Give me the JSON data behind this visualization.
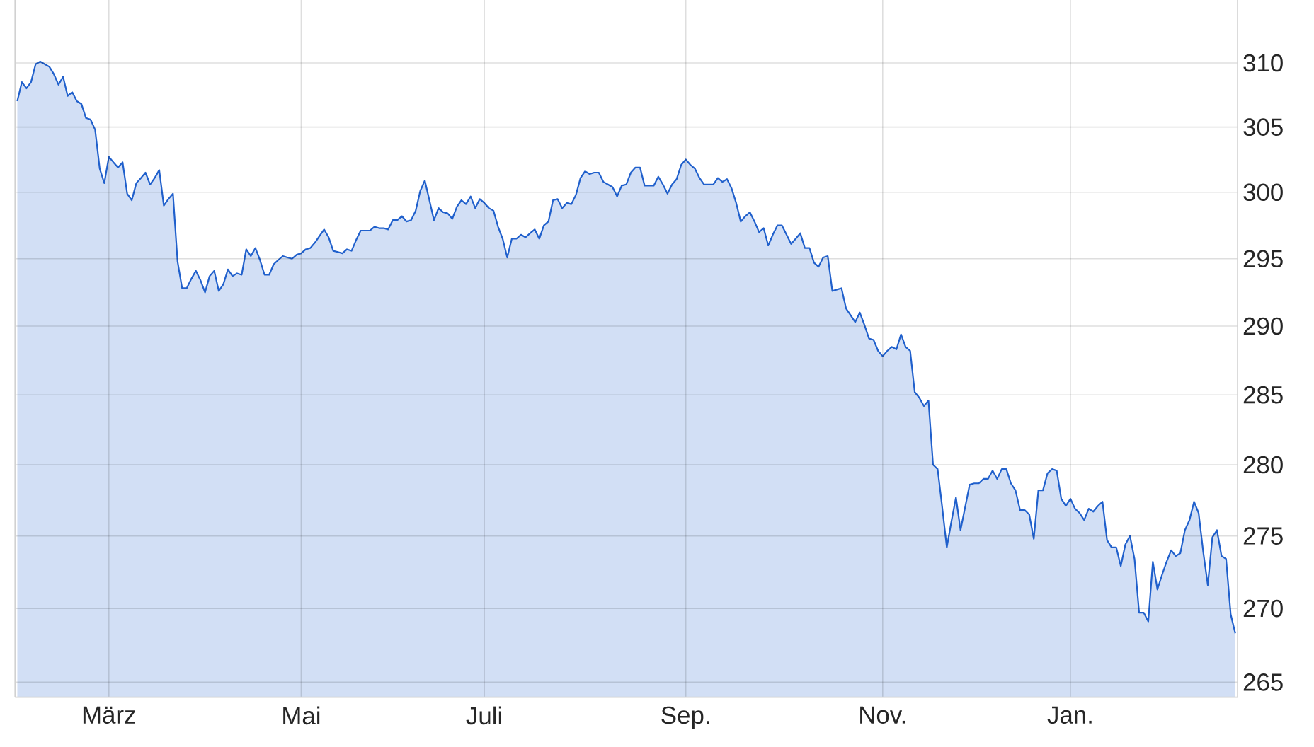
{
  "chart_data": {
    "type": "area",
    "color": "#2060cc",
    "log": "y",
    "grid": true,
    "ylim": [
      264,
      315
    ],
    "yticks": [
      265,
      270,
      275,
      280,
      285,
      290,
      295,
      300,
      305,
      310
    ],
    "categories": [
      null,
      null,
      null,
      null,
      null,
      null,
      null,
      null,
      null,
      null,
      null,
      null,
      null,
      null,
      null,
      null,
      null,
      null,
      null,
      null,
      "März",
      null,
      null,
      null,
      null,
      null,
      null,
      null,
      null,
      null,
      null,
      null,
      null,
      null,
      null,
      null,
      null,
      null,
      null,
      null,
      null,
      null,
      null,
      null,
      null,
      null,
      null,
      null,
      null,
      null,
      null,
      null,
      null,
      null,
      null,
      null,
      null,
      null,
      null,
      null,
      null,
      null,
      "Mai",
      null,
      null,
      null,
      null,
      null,
      null,
      null,
      null,
      null,
      null,
      null,
      null,
      null,
      null,
      null,
      null,
      null,
      null,
      null,
      null,
      null,
      null,
      null,
      null,
      null,
      null,
      null,
      null,
      null,
      null,
      null,
      null,
      null,
      null,
      null,
      null,
      null,
      null,
      null,
      "Juli",
      null,
      null,
      null,
      null,
      null,
      null,
      null,
      null,
      null,
      null,
      null,
      null,
      null,
      null,
      null,
      null,
      null,
      null,
      null,
      null,
      null,
      null,
      null,
      null,
      null,
      null,
      null,
      null,
      null,
      null,
      null,
      null,
      null,
      null,
      null,
      null,
      null,
      null,
      null,
      null,
      null,
      null,
      null,
      "Sep.",
      null,
      null,
      null,
      null,
      null,
      null,
      null,
      null,
      null,
      null,
      null,
      null,
      null,
      null,
      null,
      null,
      null,
      null,
      null,
      null,
      null,
      null,
      null,
      null,
      null,
      null,
      null,
      null,
      null,
      null,
      null,
      null,
      null,
      null,
      null,
      null,
      null,
      null,
      null,
      null,
      null,
      null,
      "Nov.",
      null,
      null,
      null,
      null,
      null,
      null,
      null,
      null,
      null,
      null,
      null,
      null,
      null,
      null,
      null,
      null,
      null,
      null,
      null,
      null,
      null,
      null,
      null,
      null,
      null,
      null,
      null,
      null,
      null,
      null,
      null,
      null,
      null,
      null,
      null,
      null,
      null,
      null,
      null,
      null,
      "Jan.",
      null,
      null,
      null,
      null,
      null,
      null,
      null,
      null,
      null,
      null,
      null,
      null,
      null,
      null,
      null,
      null,
      null,
      null,
      null,
      null,
      null,
      null,
      null,
      null,
      null,
      null,
      null,
      null,
      null,
      null,
      null,
      null,
      null,
      null,
      null,
      null
    ],
    "values": [
      307.0,
      308.5,
      308.0,
      308.5,
      309.9,
      310.1,
      309.9,
      309.7,
      309.1,
      308.3,
      308.9,
      307.4,
      307.7,
      307.0,
      306.8,
      305.7,
      305.6,
      304.8,
      301.8,
      300.7,
      302.7,
      302.3,
      301.9,
      302.3,
      299.9,
      299.4,
      300.7,
      301.1,
      301.5,
      300.6,
      301.1,
      301.7,
      299.0,
      299.5,
      299.9,
      294.8,
      292.8,
      292.8,
      293.5,
      294.1,
      293.4,
      292.5,
      293.7,
      294.1,
      292.6,
      293.1,
      294.2,
      293.7,
      293.9,
      293.8,
      295.7,
      295.2,
      295.8,
      294.9,
      293.8,
      293.8,
      294.6,
      294.9,
      295.2,
      295.1,
      295.0,
      295.3,
      295.4,
      295.7,
      295.8,
      296.2,
      296.7,
      297.2,
      296.6,
      295.6,
      295.5,
      295.4,
      295.7,
      295.6,
      296.4,
      297.1,
      297.1,
      297.1,
      297.4,
      297.3,
      297.3,
      297.2,
      297.9,
      297.9,
      298.2,
      297.8,
      297.9,
      298.6,
      300.1,
      300.9,
      299.4,
      297.9,
      298.8,
      298.5,
      298.4,
      298.0,
      298.9,
      299.4,
      299.1,
      299.7,
      298.8,
      299.5,
      299.2,
      298.8,
      298.6,
      297.4,
      296.5,
      295.1,
      296.5,
      296.5,
      296.8,
      296.6,
      296.9,
      297.2,
      296.5,
      297.5,
      297.8,
      299.4,
      299.5,
      298.8,
      299.2,
      299.1,
      299.8,
      301.1,
      301.6,
      301.4,
      301.5,
      301.5,
      300.8,
      300.6,
      300.4,
      299.7,
      300.5,
      300.6,
      301.5,
      301.9,
      301.9,
      300.5,
      300.5,
      300.5,
      301.2,
      300.6,
      299.9,
      300.6,
      301.0,
      302.1,
      302.5,
      302.1,
      301.8,
      301.1,
      300.6,
      300.6,
      300.6,
      301.1,
      300.8,
      301.0,
      300.3,
      299.2,
      297.8,
      298.2,
      298.5,
      297.8,
      297.0,
      297.3,
      296.0,
      296.8,
      297.5,
      297.5,
      296.8,
      296.1,
      296.5,
      296.9,
      295.8,
      295.8,
      294.7,
      294.4,
      295.1,
      295.2,
      292.6,
      292.7,
      292.8,
      291.3,
      290.8,
      290.3,
      291.0,
      290.1,
      289.1,
      289.0,
      288.2,
      287.8,
      288.2,
      288.5,
      288.3,
      289.4,
      288.5,
      288.2,
      285.2,
      284.8,
      284.2,
      284.6,
      280.0,
      279.7,
      277.0,
      274.2,
      276.0,
      277.7,
      275.4,
      277.0,
      278.6,
      278.7,
      278.7,
      279.0,
      279.0,
      279.6,
      279.0,
      279.7,
      279.7,
      278.7,
      278.2,
      276.8,
      276.8,
      276.5,
      274.8,
      278.2,
      278.2,
      279.4,
      279.7,
      279.6,
      277.6,
      277.1,
      277.6,
      276.9,
      276.6,
      276.1,
      276.9,
      276.7,
      277.1,
      277.4,
      274.7,
      274.2,
      274.2,
      272.9,
      274.4,
      275.0,
      273.4,
      269.7,
      269.7,
      269.1,
      273.2,
      271.3,
      272.3,
      273.2,
      274.0,
      273.6,
      273.8,
      275.4,
      276.1,
      277.4,
      276.6,
      273.9,
      271.6,
      274.9,
      275.4,
      273.6,
      273.4,
      269.6,
      268.3
    ]
  }
}
